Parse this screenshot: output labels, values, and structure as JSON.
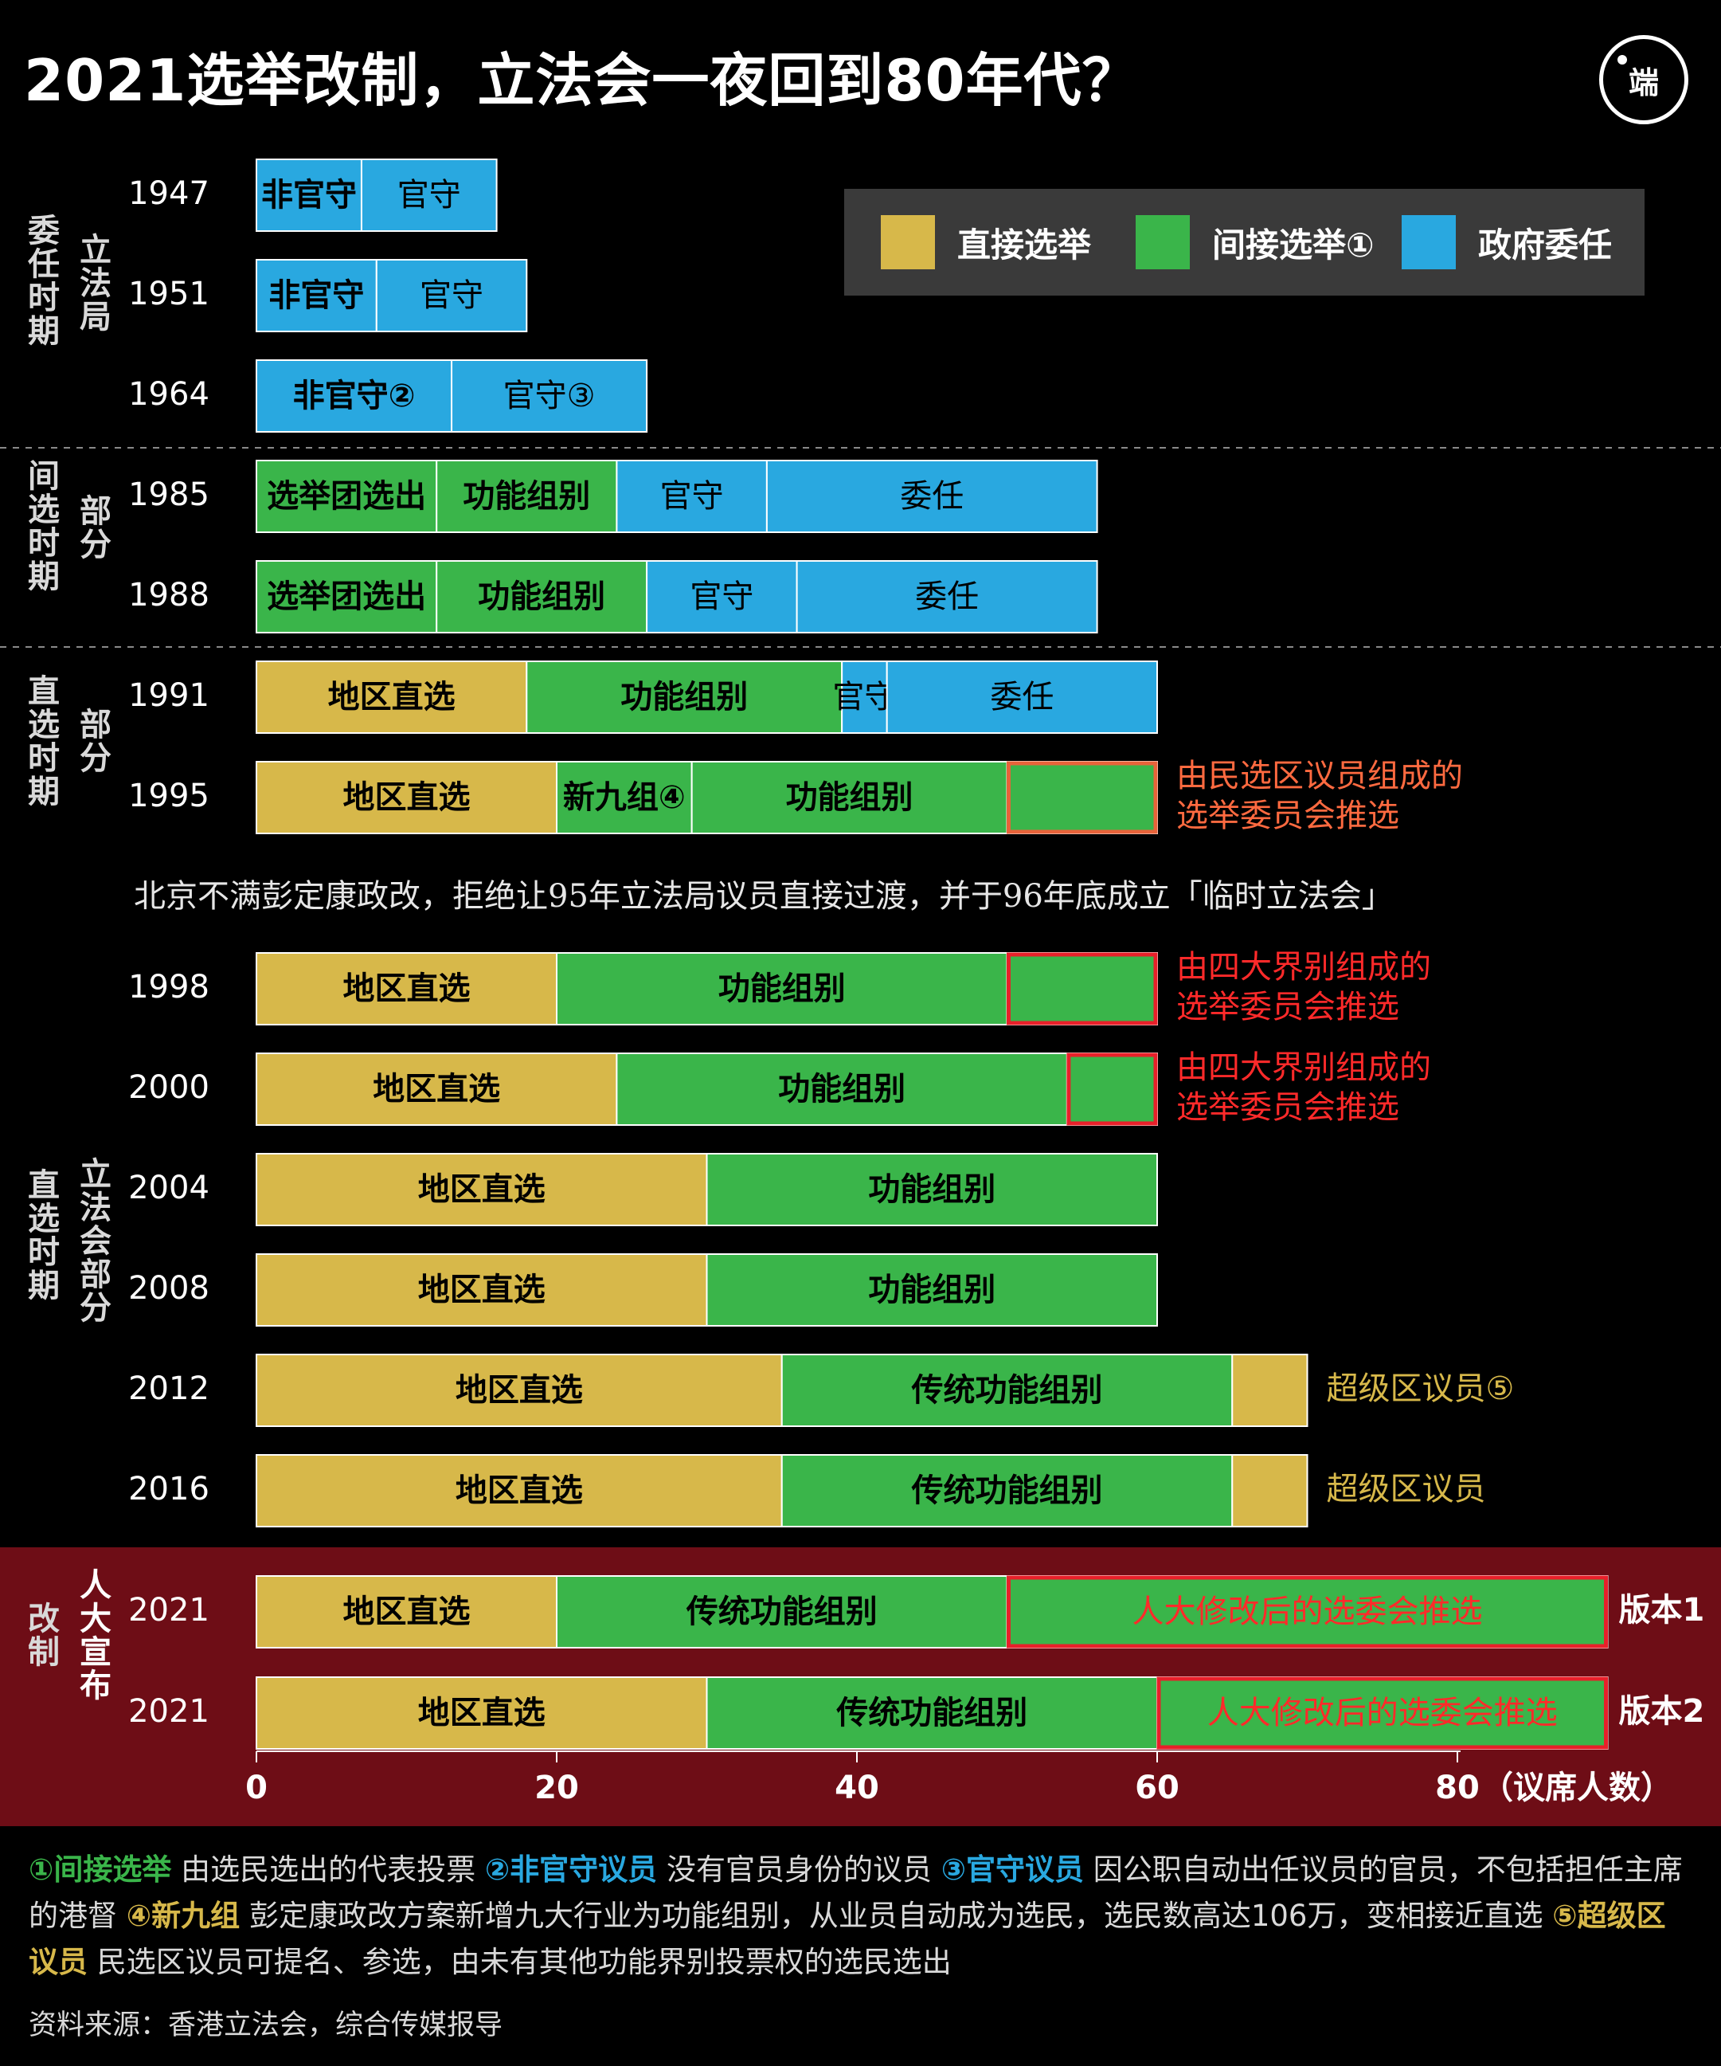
{
  "title": "2021选举改制，立法会一夜回到80年代？",
  "logo_text": "端",
  "legend": [
    {
      "label": "直接选举",
      "color": "#d7b84a"
    },
    {
      "label": "间接选举①",
      "color": "#3ab54a"
    },
    {
      "label": "政府委任",
      "color": "#29a8e0"
    }
  ],
  "period_labels": [
    {
      "period": "委任时期",
      "sub": "立法局"
    },
    {
      "period": "间选时期",
      "sub": "部分"
    },
    {
      "period": "直选时期",
      "sub": "部分"
    },
    {
      "period": "直选时期",
      "sub": "立法会部分"
    },
    {
      "period": "改制",
      "sub": "人大宣布"
    }
  ],
  "interlude_note": "北京不满彭定康政改，拒绝让95年立法局议员直接过渡，并于96年底成立「临时立法会」",
  "chart_data": {
    "type": "bar",
    "orientation": "horizontal",
    "stacked": true,
    "xlabel": "（议席人数）",
    "xlim": [
      0,
      80
    ],
    "xticks": [
      0,
      20,
      40,
      60,
      80
    ],
    "rows": [
      {
        "year": "1947",
        "segments": [
          {
            "label": "非官守",
            "value": 7,
            "kind": "appointed"
          },
          {
            "label": "官守",
            "value": 9,
            "kind": "appointed"
          }
        ]
      },
      {
        "year": "1951",
        "segments": [
          {
            "label": "非官守",
            "value": 8,
            "kind": "appointed"
          },
          {
            "label": "官守",
            "value": 10,
            "kind": "appointed"
          }
        ]
      },
      {
        "year": "1964",
        "segments": [
          {
            "label": "非官守②",
            "value": 13,
            "kind": "appointed"
          },
          {
            "label": "官守③",
            "value": 13,
            "kind": "appointed"
          }
        ]
      },
      {
        "year": "1985",
        "segments": [
          {
            "label": "选举团选出",
            "value": 12,
            "kind": "indirect"
          },
          {
            "label": "功能组别",
            "value": 12,
            "kind": "indirect"
          },
          {
            "label": "官守",
            "value": 10,
            "kind": "appointed"
          },
          {
            "label": "委任",
            "value": 22,
            "kind": "appointed"
          }
        ]
      },
      {
        "year": "1988",
        "segments": [
          {
            "label": "选举团选出",
            "value": 12,
            "kind": "indirect"
          },
          {
            "label": "功能组别",
            "value": 14,
            "kind": "indirect"
          },
          {
            "label": "官守",
            "value": 10,
            "kind": "appointed"
          },
          {
            "label": "委任",
            "value": 20,
            "kind": "appointed"
          }
        ]
      },
      {
        "year": "1991",
        "segments": [
          {
            "label": "地区直选",
            "value": 18,
            "kind": "direct"
          },
          {
            "label": "功能组别",
            "value": 21,
            "kind": "indirect"
          },
          {
            "label": "官守",
            "value": 3,
            "kind": "appointed"
          },
          {
            "label": "委任",
            "value": 18,
            "kind": "appointed"
          }
        ]
      },
      {
        "year": "1995",
        "segments": [
          {
            "label": "地区直选",
            "value": 20,
            "kind": "direct"
          },
          {
            "label": "新九组④",
            "value": 9,
            "kind": "indirect"
          },
          {
            "label": "功能组别",
            "value": 21,
            "kind": "indirect"
          },
          {
            "label": "",
            "value": 10,
            "kind": "indirect",
            "outline": "#e8633a"
          }
        ],
        "annotation": "由民选区议员组成的\n选举委员会推选",
        "annotation_color": "#ff6a40"
      },
      {
        "year": "1998",
        "segments": [
          {
            "label": "地区直选",
            "value": 20,
            "kind": "direct"
          },
          {
            "label": "功能组别",
            "value": 30,
            "kind": "indirect"
          },
          {
            "label": "",
            "value": 10,
            "kind": "indirect",
            "outline": "#e8202a"
          }
        ],
        "annotation": "由四大界别组成的\n选举委员会推选",
        "annotation_color": "#ff2a2a"
      },
      {
        "year": "2000",
        "segments": [
          {
            "label": "地区直选",
            "value": 24,
            "kind": "direct"
          },
          {
            "label": "功能组别",
            "value": 30,
            "kind": "indirect"
          },
          {
            "label": "",
            "value": 6,
            "kind": "indirect",
            "outline": "#e8202a"
          }
        ],
        "annotation": "由四大界别组成的\n选举委员会推选",
        "annotation_color": "#ff2a2a"
      },
      {
        "year": "2004",
        "segments": [
          {
            "label": "地区直选",
            "value": 30,
            "kind": "direct"
          },
          {
            "label": "功能组别",
            "value": 30,
            "kind": "indirect"
          }
        ]
      },
      {
        "year": "2008",
        "segments": [
          {
            "label": "地区直选",
            "value": 30,
            "kind": "direct"
          },
          {
            "label": "功能组别",
            "value": 30,
            "kind": "indirect"
          }
        ]
      },
      {
        "year": "2012",
        "segments": [
          {
            "label": "地区直选",
            "value": 35,
            "kind": "direct"
          },
          {
            "label": "传统功能组别",
            "value": 30,
            "kind": "indirect"
          },
          {
            "label": "",
            "value": 5,
            "kind": "direct"
          }
        ],
        "annotation": "超级区议员⑤",
        "annotation_color": "#d7b84a"
      },
      {
        "year": "2016",
        "segments": [
          {
            "label": "地区直选",
            "value": 35,
            "kind": "direct"
          },
          {
            "label": "传统功能组别",
            "value": 30,
            "kind": "indirect"
          },
          {
            "label": "",
            "value": 5,
            "kind": "direct"
          }
        ],
        "annotation": "超级区议员",
        "annotation_color": "#d7b84a"
      },
      {
        "year": "2021",
        "segments": [
          {
            "label": "地区直选",
            "value": 20,
            "kind": "direct"
          },
          {
            "label": "传统功能组别",
            "value": 30,
            "kind": "indirect"
          },
          {
            "label": "人大修改后的选委会推选",
            "value": 40,
            "kind": "indirect",
            "outline": "#e8202a",
            "label_color": "#ff2a2a"
          }
        ],
        "annotation": "版本1",
        "annotation_color": "#ffffff"
      },
      {
        "year": "2021",
        "segments": [
          {
            "label": "地区直选",
            "value": 30,
            "kind": "direct"
          },
          {
            "label": "传统功能组别",
            "value": 30,
            "kind": "indirect"
          },
          {
            "label": "人大修改后的选委会推选",
            "value": 30,
            "kind": "indirect",
            "outline": "#e8202a",
            "label_color": "#ff2a2a"
          }
        ],
        "annotation": "版本2",
        "annotation_color": "#ffffff"
      }
    ]
  },
  "colors": {
    "direct": "#d7b84a",
    "indirect": "#3ab54a",
    "appointed": "#29a8e0",
    "reform_band": "#6e0d16"
  },
  "footnotes": [
    {
      "key": "①间接选举",
      "text": " 由选民选出的代表投票 ",
      "color": "#3ab54a"
    },
    {
      "key": "②非官守议员",
      "text": " 没有官员身份的议员 ",
      "color": "#29a8e0"
    },
    {
      "key": "③官守议员",
      "text": " 因公职自动出任议员的官员，不包括担任主席的港督 ",
      "color": "#29a8e0"
    },
    {
      "key": "④新九组",
      "text": " 彭定康政改方案新增九大行业为功能组别，从业员自动成为选民，选民数高达106万，变相接近直选 ",
      "color": "#d7b84a"
    },
    {
      "key": "⑤超级区议员",
      "text": " 民选区议员可提名、参选，由未有其他功能界别投票权的选民选出",
      "color": "#d7b84a"
    }
  ],
  "source": "资料来源：香港立法会，综合传媒报导"
}
